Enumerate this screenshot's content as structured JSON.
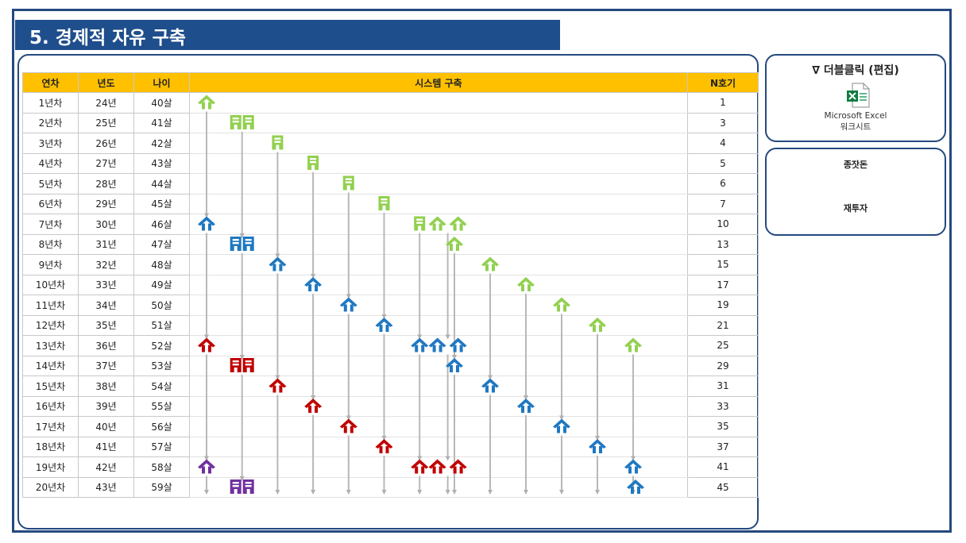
{
  "title": "5. 경제적 자유 구축",
  "table": {
    "headers": [
      "연차",
      "년도",
      "나이",
      "시스템 구축",
      "N호기"
    ],
    "rows": [
      [
        "1년차",
        "24년",
        "40살",
        "1"
      ],
      [
        "2년차",
        "25년",
        "41살",
        "3"
      ],
      [
        "3년차",
        "26년",
        "42살",
        "4"
      ],
      [
        "4년차",
        "27년",
        "43살",
        "5"
      ],
      [
        "5년차",
        "28년",
        "44살",
        "6"
      ],
      [
        "6년차",
        "29년",
        "45살",
        "7"
      ],
      [
        "7년차",
        "30년",
        "46살",
        "10"
      ],
      [
        "8년차",
        "31년",
        "47살",
        "13"
      ],
      [
        "9년차",
        "32년",
        "48살",
        "15"
      ],
      [
        "10년차",
        "33년",
        "49살",
        "17"
      ],
      [
        "11년차",
        "34년",
        "50살",
        "19"
      ],
      [
        "12년차",
        "35년",
        "51살",
        "21"
      ],
      [
        "13년차",
        "36년",
        "52살",
        "25"
      ],
      [
        "14년차",
        "37년",
        "53살",
        "29"
      ],
      [
        "15년차",
        "38년",
        "54살",
        "31"
      ],
      [
        "16년차",
        "39년",
        "55살",
        "33"
      ],
      [
        "17년차",
        "40년",
        "56살",
        "35"
      ],
      [
        "18년차",
        "41년",
        "57살",
        "37"
      ],
      [
        "19년차",
        "42년",
        "58살",
        "41"
      ],
      [
        "20년차",
        "43년",
        "59살",
        "45"
      ]
    ]
  },
  "embed": {
    "label": "∇ 더블클릭 (편집)",
    "caption_line1": "Microsoft Excel",
    "caption_line2": "워크시트",
    "icon": "excel-file-icon"
  },
  "legend": {
    "seed_label": "종잣돈",
    "reinvest_label": "재투자"
  },
  "colors": {
    "green": "#92d050",
    "blue": "#1f78c1",
    "red": "#c00000",
    "purple": "#7030a0",
    "arrow": "#b8b8b8",
    "header": "#ffc000",
    "navy": "#1f4e8c"
  }
}
